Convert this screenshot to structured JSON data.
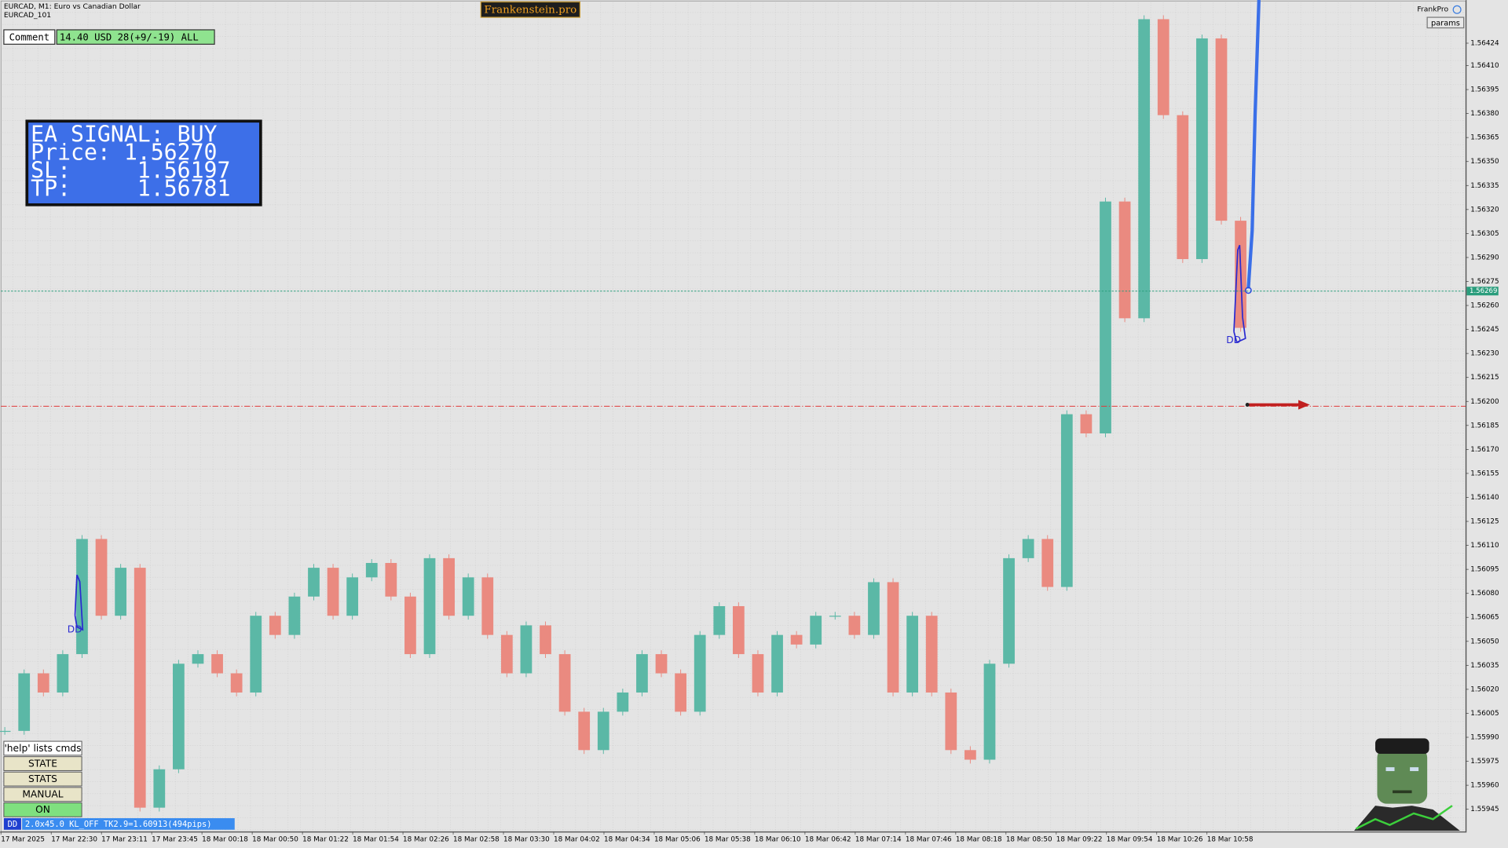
{
  "header": {
    "symbol": "EURCAD, M1:  Euro vs Canadian Dollar",
    "account": "EURCAD_101",
    "brand": "Frankenstein.pro",
    "profile": "FrankPro",
    "params": "params"
  },
  "comment": {
    "label": "Comment",
    "value": "14.40 USD 28(+9/-19) ALL"
  },
  "signal": {
    "lines": [
      "EA SIGNAL: BUY",
      "Price: 1.56270",
      "SL:     1.56197",
      "TP:     1.56781"
    ]
  },
  "buttons": [
    "'help' lists cmds",
    "STATE",
    "STATS",
    "MANUAL",
    "ON"
  ],
  "status": {
    "tag": "DD",
    "text": "2.0x45.0 KL_OFF TK2.9=1.60913(494pips)"
  },
  "annotations": {
    "dd": "DD"
  },
  "price_chart": {
    "type": "candlestick",
    "ylim": [
      1.55931,
      1.56451
    ],
    "yticks": [
      {
        "value": 1.56424,
        "label": "1.56424"
      },
      {
        "value": 1.5641,
        "label": "1.56410"
      },
      {
        "value": 1.56395,
        "label": "1.56395"
      },
      {
        "value": 1.5638,
        "label": "1.56380"
      },
      {
        "value": 1.56365,
        "label": "1.56365"
      },
      {
        "value": 1.5635,
        "label": "1.56350"
      },
      {
        "value": 1.56335,
        "label": "1.56335"
      },
      {
        "value": 1.5632,
        "label": "1.56320"
      },
      {
        "value": 1.56305,
        "label": "1.56305"
      },
      {
        "value": 1.5629,
        "label": "1.56290"
      },
      {
        "value": 1.56275,
        "label": "1.56275"
      },
      {
        "value": 1.5626,
        "label": "1.56260"
      },
      {
        "value": 1.56245,
        "label": "1.56245"
      },
      {
        "value": 1.5623,
        "label": "1.56230"
      },
      {
        "value": 1.56215,
        "label": "1.56215"
      },
      {
        "value": 1.562,
        "label": "1.56200"
      },
      {
        "value": 1.56185,
        "label": "1.56185"
      },
      {
        "value": 1.5617,
        "label": "1.56170"
      },
      {
        "value": 1.56155,
        "label": "1.56155"
      },
      {
        "value": 1.5614,
        "label": "1.56140"
      },
      {
        "value": 1.56125,
        "label": "1.56125"
      },
      {
        "value": 1.5611,
        "label": "1.56110"
      },
      {
        "value": 1.56095,
        "label": "1.56095"
      },
      {
        "value": 1.5608,
        "label": "1.56080"
      },
      {
        "value": 1.56065,
        "label": "1.56065"
      },
      {
        "value": 1.5605,
        "label": "1.56050"
      },
      {
        "value": 1.56035,
        "label": "1.56035"
      },
      {
        "value": 1.5602,
        "label": "1.56020"
      },
      {
        "value": 1.56005,
        "label": "1.56005"
      },
      {
        "value": 1.5599,
        "label": "1.55990"
      },
      {
        "value": 1.55975,
        "label": "1.55975"
      },
      {
        "value": 1.5596,
        "label": "1.55960"
      },
      {
        "value": 1.55945,
        "label": "1.55945"
      }
    ],
    "categories": [
      "17 Mar 2025",
      "17 Mar 22:30",
      "17 Mar 23:11",
      "17 Mar 23:45",
      "18 Mar 00:18",
      "18 Mar 00:50",
      "18 Mar 01:22",
      "18 Mar 01:54",
      "18 Mar 02:26",
      "18 Mar 02:58",
      "18 Mar 03:30",
      "18 Mar 04:02",
      "18 Mar 04:34",
      "18 Mar 05:06",
      "18 Mar 05:38",
      "18 Mar 06:10",
      "18 Mar 06:42",
      "18 Mar 07:14",
      "18 Mar 07:46",
      "18 Mar 08:18",
      "18 Mar 08:50",
      "18 Mar 09:22",
      "18 Mar 09:54",
      "18 Mar 10:26",
      "18 Mar 10:58"
    ],
    "closes": [
      1.55994,
      1.5603,
      1.56018,
      1.56042,
      1.56114,
      1.56066,
      1.56096,
      1.55946,
      1.5597,
      1.56036,
      1.56042,
      1.5603,
      1.56018,
      1.56066,
      1.56054,
      1.56078,
      1.56096,
      1.56066,
      1.5609,
      1.56099,
      1.56078,
      1.56042,
      1.56102,
      1.56066,
      1.5609,
      1.56054,
      1.5603,
      1.5606,
      1.56042,
      1.56006,
      1.55982,
      1.56006,
      1.56018,
      1.56042,
      1.5603,
      1.56006,
      1.56054,
      1.56072,
      1.56042,
      1.56018,
      1.56054,
      1.56048,
      1.56066,
      1.56066,
      1.56054,
      1.56087,
      1.56018,
      1.56066,
      1.56018,
      1.55982,
      1.55976,
      1.56036,
      1.56102,
      1.56114,
      1.56084,
      1.56192,
      1.5618,
      1.56325,
      1.56252,
      1.56439,
      1.56379,
      1.56289,
      1.56427,
      1.56313,
      1.56246
    ],
    "up_color": "#5bb8a6",
    "down_color": "#ea8a80",
    "bid": {
      "value": 1.56269,
      "label": "1.56269",
      "color": "#2a9d7c"
    },
    "stop": {
      "value": 1.56197,
      "color": "#e03a3a"
    },
    "grid": true
  }
}
